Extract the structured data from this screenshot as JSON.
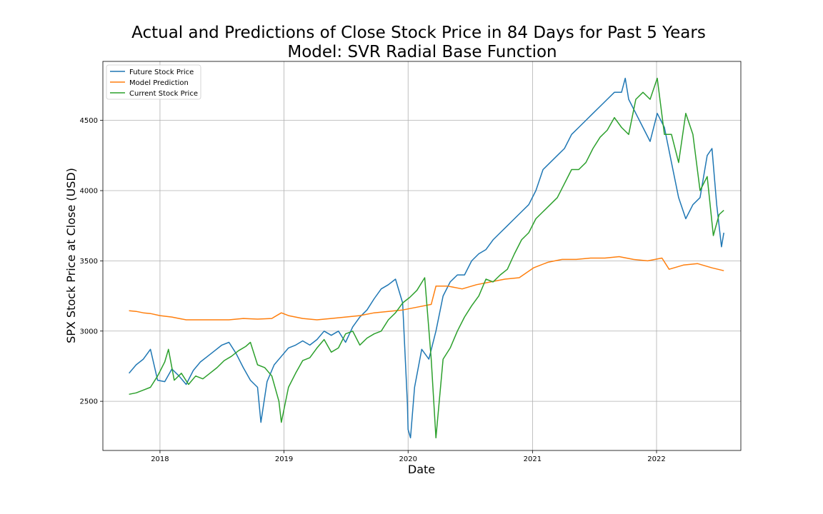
{
  "chart_data": {
    "type": "line",
    "title": "Actual and Predictions of Close Stock Price in 84 Days for Past 5 Years",
    "subtitle": "Model: SVR Radial Base Function",
    "xlabel": "Date",
    "ylabel": "SPX Stock Price at Close (USD)",
    "xlim": [
      "2017-07-17",
      "2022-09-06"
    ],
    "ylim": [
      2150,
      4920
    ],
    "x_ticks": [
      "2018",
      "2019",
      "2020",
      "2021",
      "2022"
    ],
    "y_ticks": [
      2500,
      3000,
      3500,
      4000,
      4500
    ],
    "grid": true,
    "legend_position": "top-left",
    "series": [
      {
        "name": "Future Stock Price",
        "color": "#1f77b4",
        "points": [
          [
            "2017-10-02",
            2700
          ],
          [
            "2017-10-23",
            2760
          ],
          [
            "2017-11-13",
            2800
          ],
          [
            "2017-12-04",
            2870
          ],
          [
            "2017-12-25",
            2650
          ],
          [
            "2018-01-15",
            2640
          ],
          [
            "2018-02-05",
            2730
          ],
          [
            "2018-02-26",
            2680
          ],
          [
            "2018-03-19",
            2620
          ],
          [
            "2018-04-09",
            2720
          ],
          [
            "2018-04-30",
            2780
          ],
          [
            "2018-05-21",
            2820
          ],
          [
            "2018-06-11",
            2860
          ],
          [
            "2018-07-02",
            2900
          ],
          [
            "2018-07-23",
            2920
          ],
          [
            "2018-08-13",
            2840
          ],
          [
            "2018-09-03",
            2740
          ],
          [
            "2018-09-24",
            2650
          ],
          [
            "2018-10-15",
            2600
          ],
          [
            "2018-10-25",
            2350
          ],
          [
            "2018-11-12",
            2640
          ],
          [
            "2018-12-03",
            2760
          ],
          [
            "2018-12-24",
            2820
          ],
          [
            "2019-01-14",
            2880
          ],
          [
            "2019-02-04",
            2900
          ],
          [
            "2019-02-25",
            2930
          ],
          [
            "2019-03-18",
            2900
          ],
          [
            "2019-04-08",
            2940
          ],
          [
            "2019-04-29",
            3000
          ],
          [
            "2019-05-20",
            2970
          ],
          [
            "2019-06-10",
            3000
          ],
          [
            "2019-07-01",
            2920
          ],
          [
            "2019-07-22",
            3030
          ],
          [
            "2019-08-12",
            3100
          ],
          [
            "2019-09-02",
            3150
          ],
          [
            "2019-09-23",
            3230
          ],
          [
            "2019-10-14",
            3300
          ],
          [
            "2019-11-04",
            3330
          ],
          [
            "2019-11-25",
            3370
          ],
          [
            "2019-12-16",
            3200
          ],
          [
            "2019-12-30",
            2480
          ],
          [
            "2020-01-01",
            2300
          ],
          [
            "2020-01-08",
            2240
          ],
          [
            "2020-01-20",
            2600
          ],
          [
            "2020-02-10",
            2870
          ],
          [
            "2020-03-02",
            2800
          ],
          [
            "2020-03-23",
            3000
          ],
          [
            "2020-04-13",
            3250
          ],
          [
            "2020-05-04",
            3350
          ],
          [
            "2020-05-25",
            3400
          ],
          [
            "2020-06-15",
            3400
          ],
          [
            "2020-07-06",
            3500
          ],
          [
            "2020-07-27",
            3550
          ],
          [
            "2020-08-17",
            3580
          ],
          [
            "2020-09-07",
            3650
          ],
          [
            "2020-09-28",
            3700
          ],
          [
            "2020-10-19",
            3750
          ],
          [
            "2020-11-09",
            3800
          ],
          [
            "2020-11-30",
            3850
          ],
          [
            "2020-12-21",
            3900
          ],
          [
            "2021-01-11",
            4000
          ],
          [
            "2021-02-01",
            4150
          ],
          [
            "2021-02-22",
            4200
          ],
          [
            "2021-03-15",
            4250
          ],
          [
            "2021-04-05",
            4300
          ],
          [
            "2021-04-26",
            4400
          ],
          [
            "2021-05-17",
            4450
          ],
          [
            "2021-06-07",
            4500
          ],
          [
            "2021-06-28",
            4550
          ],
          [
            "2021-07-19",
            4600
          ],
          [
            "2021-08-09",
            4650
          ],
          [
            "2021-08-30",
            4700
          ],
          [
            "2021-09-20",
            4700
          ],
          [
            "2021-10-01",
            4800
          ],
          [
            "2021-10-11",
            4650
          ],
          [
            "2021-11-01",
            4550
          ],
          [
            "2021-11-22",
            4450
          ],
          [
            "2021-12-13",
            4350
          ],
          [
            "2022-01-03",
            4550
          ],
          [
            "2022-01-24",
            4450
          ],
          [
            "2022-02-14",
            4200
          ],
          [
            "2022-03-07",
            3950
          ],
          [
            "2022-03-28",
            3800
          ],
          [
            "2022-04-18",
            3900
          ],
          [
            "2022-05-09",
            3950
          ],
          [
            "2022-05-30",
            4250
          ],
          [
            "2022-06-13",
            4300
          ],
          [
            "2022-06-27",
            3900
          ],
          [
            "2022-07-11",
            3600
          ],
          [
            "2022-07-18",
            3700
          ]
        ]
      },
      {
        "name": "Model Prediction",
        "color": "#ff7f0e",
        "points": [
          [
            "2017-10-02",
            3145
          ],
          [
            "2017-10-23",
            3140
          ],
          [
            "2017-11-13",
            3130
          ],
          [
            "2017-12-04",
            3125
          ],
          [
            "2018-01-01",
            3110
          ],
          [
            "2018-02-05",
            3100
          ],
          [
            "2018-02-26",
            3090
          ],
          [
            "2018-03-19",
            3080
          ],
          [
            "2018-04-30",
            3080
          ],
          [
            "2018-06-11",
            3080
          ],
          [
            "2018-07-23",
            3080
          ],
          [
            "2018-09-03",
            3090
          ],
          [
            "2018-10-15",
            3085
          ],
          [
            "2018-11-26",
            3090
          ],
          [
            "2018-12-24",
            3130
          ],
          [
            "2019-01-14",
            3110
          ],
          [
            "2019-02-25",
            3090
          ],
          [
            "2019-04-08",
            3080
          ],
          [
            "2019-05-20",
            3090
          ],
          [
            "2019-07-01",
            3100
          ],
          [
            "2019-08-12",
            3110
          ],
          [
            "2019-09-23",
            3130
          ],
          [
            "2019-11-04",
            3140
          ],
          [
            "2019-12-16",
            3150
          ],
          [
            "2020-01-27",
            3170
          ],
          [
            "2020-03-09",
            3190
          ],
          [
            "2020-03-23",
            3320
          ],
          [
            "2020-04-27",
            3320
          ],
          [
            "2020-06-08",
            3300
          ],
          [
            "2020-07-20",
            3330
          ],
          [
            "2020-08-31",
            3350
          ],
          [
            "2020-10-12",
            3370
          ],
          [
            "2020-11-23",
            3380
          ],
          [
            "2021-01-04",
            3450
          ],
          [
            "2021-02-15",
            3490
          ],
          [
            "2021-03-29",
            3510
          ],
          [
            "2021-05-10",
            3510
          ],
          [
            "2021-06-21",
            3520
          ],
          [
            "2021-08-02",
            3520
          ],
          [
            "2021-09-13",
            3530
          ],
          [
            "2021-10-25",
            3510
          ],
          [
            "2021-12-06",
            3500
          ],
          [
            "2022-01-17",
            3520
          ],
          [
            "2022-02-07",
            3440
          ],
          [
            "2022-03-21",
            3470
          ],
          [
            "2022-05-02",
            3480
          ],
          [
            "2022-06-13",
            3450
          ],
          [
            "2022-07-18",
            3430
          ]
        ]
      },
      {
        "name": "Current Stock Price",
        "color": "#2ca02c",
        "points": [
          [
            "2017-10-02",
            2550
          ],
          [
            "2017-10-23",
            2560
          ],
          [
            "2017-11-13",
            2580
          ],
          [
            "2017-12-04",
            2600
          ],
          [
            "2017-12-25",
            2680
          ],
          [
            "2018-01-15",
            2780
          ],
          [
            "2018-01-26",
            2870
          ],
          [
            "2018-02-12",
            2650
          ],
          [
            "2018-03-05",
            2700
          ],
          [
            "2018-03-26",
            2620
          ],
          [
            "2018-04-16",
            2680
          ],
          [
            "2018-05-07",
            2660
          ],
          [
            "2018-05-28",
            2700
          ],
          [
            "2018-06-18",
            2740
          ],
          [
            "2018-07-09",
            2790
          ],
          [
            "2018-07-30",
            2820
          ],
          [
            "2018-08-20",
            2860
          ],
          [
            "2018-09-10",
            2890
          ],
          [
            "2018-09-24",
            2920
          ],
          [
            "2018-10-15",
            2760
          ],
          [
            "2018-11-05",
            2740
          ],
          [
            "2018-11-26",
            2680
          ],
          [
            "2018-12-17",
            2500
          ],
          [
            "2018-12-24",
            2350
          ],
          [
            "2019-01-14",
            2600
          ],
          [
            "2019-02-04",
            2700
          ],
          [
            "2019-02-25",
            2790
          ],
          [
            "2019-03-18",
            2810
          ],
          [
            "2019-04-08",
            2880
          ],
          [
            "2019-04-29",
            2940
          ],
          [
            "2019-05-20",
            2850
          ],
          [
            "2019-06-10",
            2880
          ],
          [
            "2019-07-01",
            2980
          ],
          [
            "2019-07-22",
            3000
          ],
          [
            "2019-08-12",
            2900
          ],
          [
            "2019-09-02",
            2950
          ],
          [
            "2019-09-23",
            2980
          ],
          [
            "2019-10-14",
            3000
          ],
          [
            "2019-11-04",
            3080
          ],
          [
            "2019-11-25",
            3130
          ],
          [
            "2019-12-16",
            3200
          ],
          [
            "2020-01-06",
            3240
          ],
          [
            "2020-01-27",
            3290
          ],
          [
            "2020-02-19",
            3380
          ],
          [
            "2020-03-09",
            2800
          ],
          [
            "2020-03-23",
            2240
          ],
          [
            "2020-04-13",
            2800
          ],
          [
            "2020-05-04",
            2880
          ],
          [
            "2020-05-25",
            3000
          ],
          [
            "2020-06-15",
            3100
          ],
          [
            "2020-07-06",
            3180
          ],
          [
            "2020-07-27",
            3250
          ],
          [
            "2020-08-17",
            3370
          ],
          [
            "2020-09-07",
            3350
          ],
          [
            "2020-09-28",
            3400
          ],
          [
            "2020-10-19",
            3440
          ],
          [
            "2020-11-09",
            3550
          ],
          [
            "2020-11-30",
            3650
          ],
          [
            "2020-12-21",
            3700
          ],
          [
            "2021-01-11",
            3800
          ],
          [
            "2021-02-01",
            3850
          ],
          [
            "2021-02-22",
            3900
          ],
          [
            "2021-03-15",
            3950
          ],
          [
            "2021-04-05",
            4050
          ],
          [
            "2021-04-26",
            4150
          ],
          [
            "2021-05-17",
            4150
          ],
          [
            "2021-06-07",
            4200
          ],
          [
            "2021-06-28",
            4300
          ],
          [
            "2021-07-19",
            4380
          ],
          [
            "2021-08-09",
            4430
          ],
          [
            "2021-08-30",
            4520
          ],
          [
            "2021-09-20",
            4450
          ],
          [
            "2021-10-11",
            4400
          ],
          [
            "2021-11-01",
            4650
          ],
          [
            "2021-11-22",
            4700
          ],
          [
            "2021-12-13",
            4650
          ],
          [
            "2022-01-03",
            4800
          ],
          [
            "2022-01-24",
            4400
          ],
          [
            "2022-02-14",
            4400
          ],
          [
            "2022-03-07",
            4200
          ],
          [
            "2022-03-28",
            4550
          ],
          [
            "2022-04-18",
            4400
          ],
          [
            "2022-05-09",
            4000
          ],
          [
            "2022-05-30",
            4100
          ],
          [
            "2022-06-17",
            3680
          ],
          [
            "2022-07-04",
            3830
          ],
          [
            "2022-07-18",
            3860
          ]
        ]
      }
    ]
  }
}
